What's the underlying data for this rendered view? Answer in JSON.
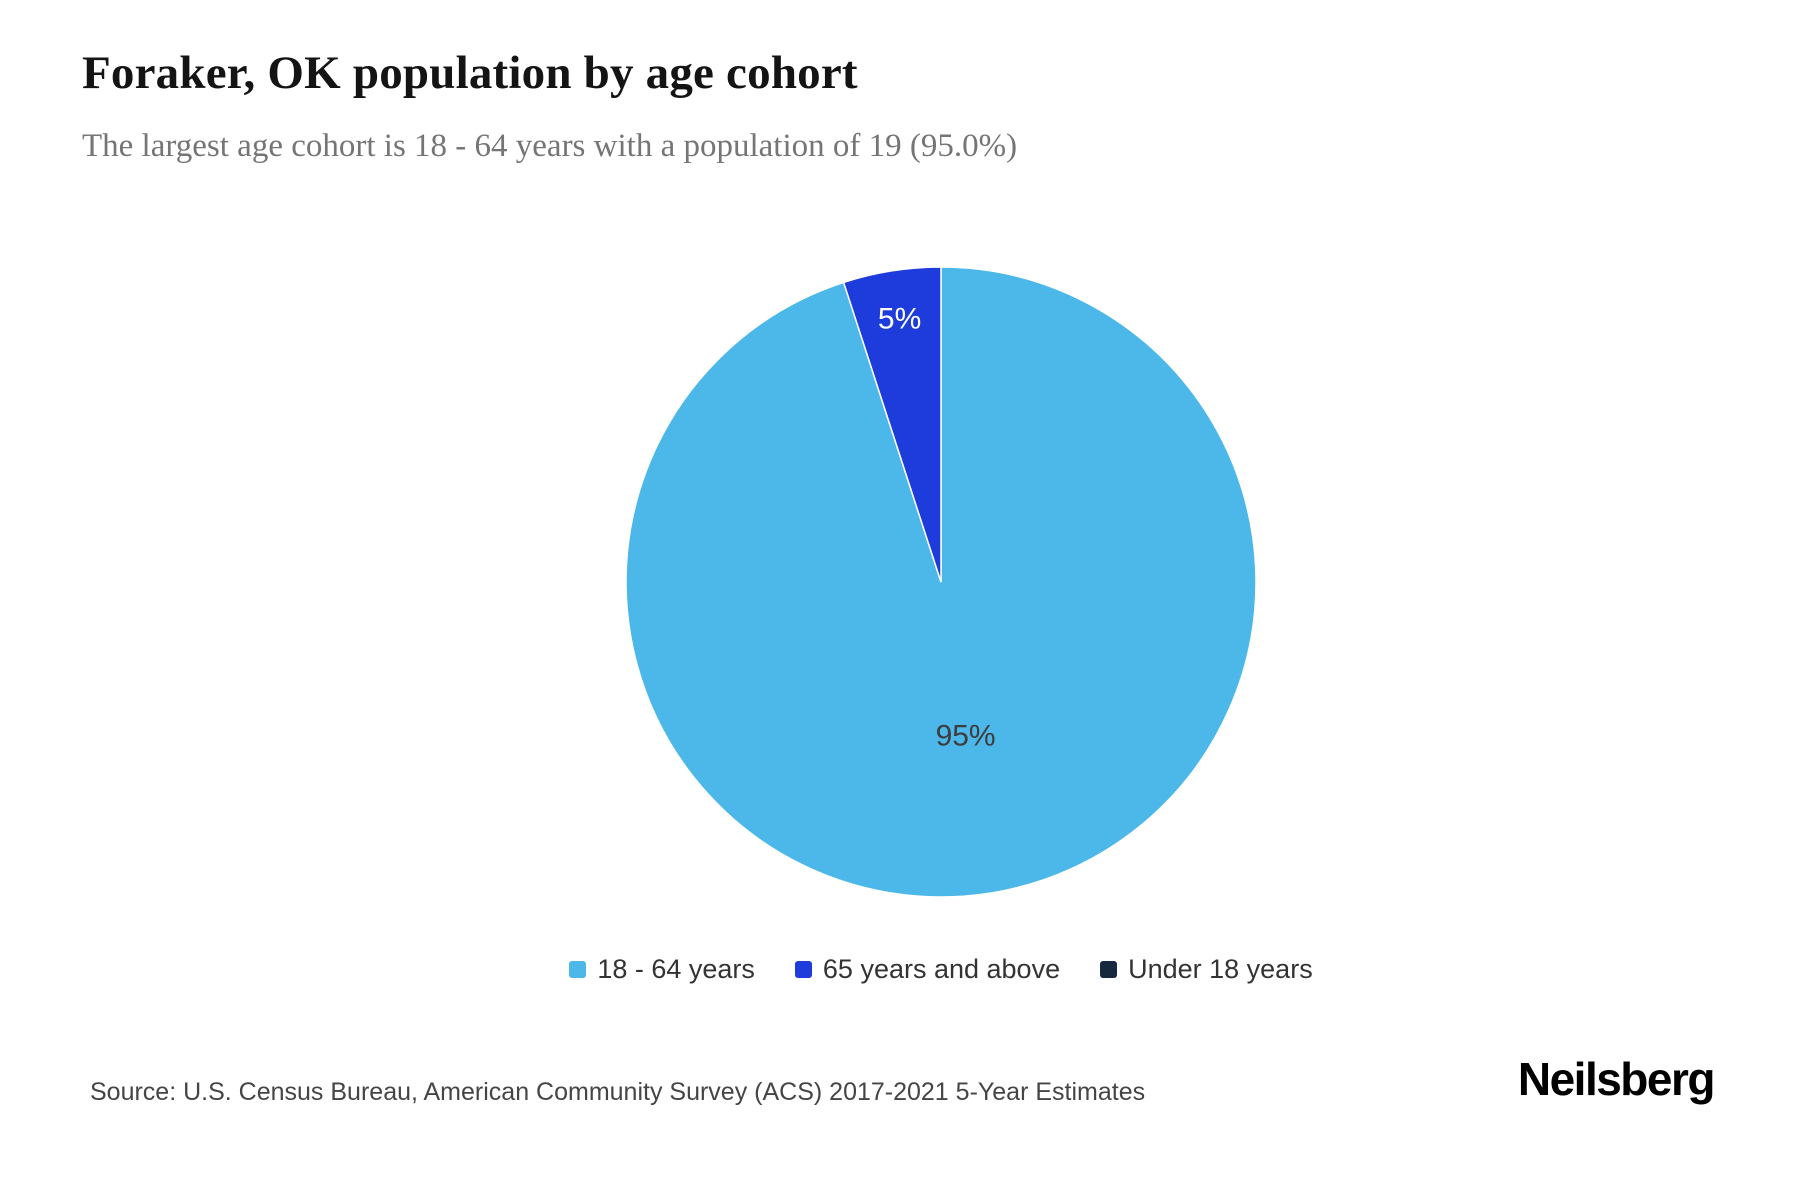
{
  "chart_data": {
    "type": "pie",
    "title": "Foraker, OK population by age cohort",
    "subtitle": "The largest age cohort is 18 - 64 years with a population of 19 (95.0%)",
    "legend_position": "bottom",
    "start_angle": 0,
    "direction": "clockwise",
    "slices": [
      {
        "label": "18 - 64 years",
        "value": 95,
        "display": "95%",
        "color": "#4CB8EA",
        "label_color": "#3d3d3d",
        "label_radius": 0.5
      },
      {
        "label": "65 years and above",
        "value": 5,
        "display": "5%",
        "color": "#1D3CDB",
        "label_color": "#ffffff",
        "label_radius": 0.84
      },
      {
        "label": "Under 18 years",
        "value": 0,
        "display": "",
        "color": "#16293E",
        "label_color": "#ffffff",
        "label_radius": 0
      }
    ]
  },
  "footer": {
    "source": "Source: U.S. Census Bureau, American Community Survey (ACS) 2017-2021 5-Year Estimates",
    "brand": "Neilsberg"
  }
}
